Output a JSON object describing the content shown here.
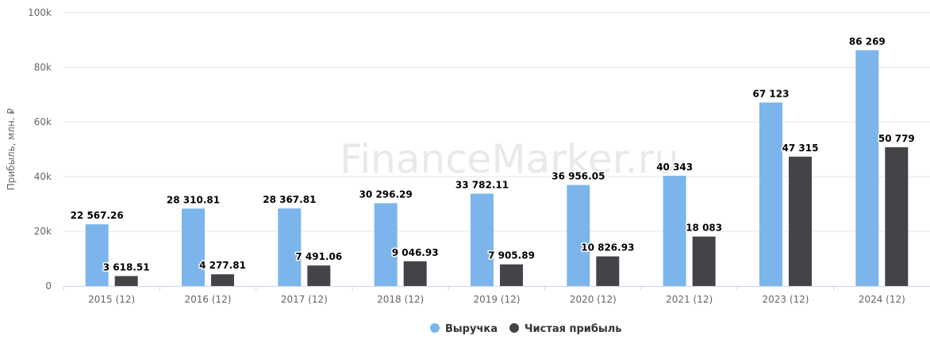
{
  "watermark": "FinanceMarker.ru",
  "chart_data": {
    "type": "bar",
    "ylabel": "Прибыль, млн. ₽",
    "xlabel": "",
    "ylim": [
      0,
      100000
    ],
    "yticks": [
      0,
      20000,
      40000,
      60000,
      80000,
      100000
    ],
    "ytick_labels": [
      "0",
      "20k",
      "40k",
      "60k",
      "80k",
      "100k"
    ],
    "grid": true,
    "legend_position": "bottom-center",
    "categories": [
      "2015 (12)",
      "2016 (12)",
      "2017 (12)",
      "2018 (12)",
      "2019 (12)",
      "2020 (12)",
      "2021 (12)",
      "2023 (12)",
      "2024 (12)"
    ],
    "series": [
      {
        "name": "Выручка",
        "color": "#7cb5ec",
        "values": [
          22567.26,
          28310.81,
          28367.81,
          30296.29,
          33782.11,
          36956.05,
          40343,
          67123,
          86269
        ],
        "labels": [
          "22 567.26",
          "28 310.81",
          "28 367.81",
          "30 296.29",
          "33 782.11",
          "36 956.05",
          "40 343",
          "67 123",
          "86 269"
        ]
      },
      {
        "name": "Чистая прибыль",
        "color": "#434348",
        "values": [
          3618.51,
          4277.81,
          7491.06,
          9046.93,
          7905.89,
          10826.93,
          18083,
          47315,
          50779
        ],
        "labels": [
          "3 618.51",
          "4 277.81",
          "7 491.06",
          "9 046.93",
          "7 905.89",
          "10 826.93",
          "18 083",
          "47 315",
          "50 779"
        ]
      }
    ]
  }
}
